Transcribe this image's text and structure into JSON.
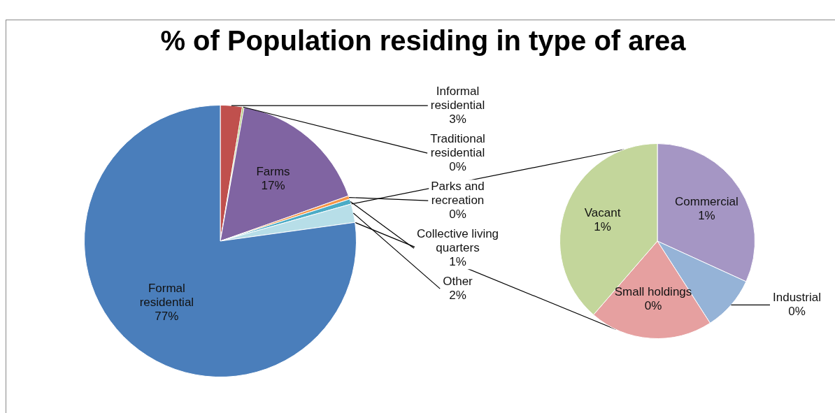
{
  "chart_data": [
    {
      "type": "pie",
      "title": "% of Population residing in type of area",
      "categories": [
        "Informal residential",
        "Traditional residential",
        "Farms",
        "Parks and recreation",
        "Collective living quarters",
        "Other",
        "Formal residential"
      ],
      "values": [
        2.6,
        0.2,
        16.8,
        0.4,
        0.6,
        2.2,
        77.2
      ],
      "value_labels": [
        "3%",
        "0%",
        "17%",
        "0%",
        "1%",
        "2%",
        "77%"
      ],
      "colors": [
        "#c0504d",
        "#9bbb59",
        "#8064a2",
        "#f79646",
        "#4bacc6",
        "#b7dee8",
        "#4a7ebb"
      ]
    },
    {
      "type": "pie",
      "categories": [
        "Commercial",
        "Industrial",
        "Small holdings",
        "Vacant"
      ],
      "values": [
        0.7,
        0.2,
        0.45,
        0.85
      ],
      "value_labels": [
        "1%",
        "0%",
        "0%",
        "1%"
      ],
      "colors": [
        "#a596c4",
        "#95b3d7",
        "#e6a0a0",
        "#c3d69b"
      ]
    }
  ]
}
